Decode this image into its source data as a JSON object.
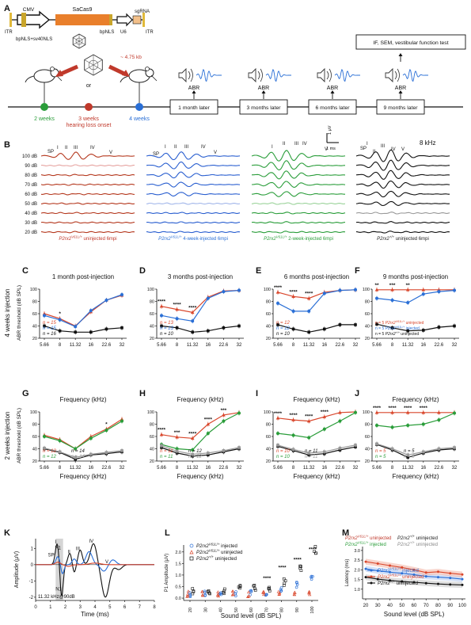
{
  "panel_letters": [
    "A",
    "B",
    "C",
    "D",
    "E",
    "F",
    "G",
    "H",
    "I",
    "J",
    "K",
    "L",
    "M"
  ],
  "construct": {
    "itr_left": "ITR",
    "itr_right": "ITR",
    "cmv": "CMV",
    "sacas9": "SaCas9",
    "u6": "U6",
    "sgrna": "sgRNA",
    "nls1": "bpNLS+sv40NLS",
    "nls2": "bpNLS",
    "size": "~ 4.75 kb"
  },
  "timeline": {
    "or": "or",
    "t2": "2 weeks",
    "t3a": "3 weeks",
    "t3b": "hearing loss onset",
    "t4": "4 weeks",
    "boxes": [
      "1 month later",
      "3 months later",
      "6 months later",
      "9 months later"
    ],
    "abr": "ABR",
    "final_test": "IF, SEM, vestibular function test",
    "colors": {
      "t2": "#2a9d3a",
      "t3": "#c0392b",
      "t4": "#2a6fd6"
    }
  },
  "panel_b": {
    "db_labels": [
      "100 dB",
      "90 dB",
      "80 dB",
      "70 dB",
      "60 dB",
      "50 dB",
      "40 dB",
      "30 dB",
      "20 dB"
    ],
    "peak_labels": [
      "SP",
      "I",
      "II",
      "III",
      "IV",
      "V"
    ],
    "freq": "8 kHz",
    "scale_v": "1 μV",
    "scale_t": "1 ms",
    "captions": [
      {
        "gene": "P2rx2",
        "sup": "V61L/+",
        "rest": " uninjected 6mpi",
        "color": "#c0392b"
      },
      {
        "gene": "P2rx2",
        "sup": "V61L/+",
        "rest": " 4-week-injected 6mpi",
        "color": "#2a6fd6"
      },
      {
        "gene": "P2rx2",
        "sup": "V61L/+",
        "rest": " 2-week-injected 6mpi",
        "color": "#2a9d3a"
      },
      {
        "gene": "P2rx2",
        "sup": "+/+",
        "rest": " uninjected 6mpi",
        "color": "#222222"
      }
    ]
  },
  "rowlabels": {
    "row1": "4 weeks injection",
    "row2": "2 weeks injection",
    "ylabel": "ABR threshold (dB SPL)"
  },
  "abr_charts": {
    "xlabel": "Frequency (kHz)",
    "x_ticks": [
      "5.66",
      "8",
      "11.32",
      "16",
      "22.6",
      "32"
    ],
    "y_ticks": [
      "20",
      "40",
      "60",
      "80",
      "100"
    ],
    "colors": {
      "mut": "#d9462b",
      "treat4": "#2a6fd6",
      "treat2": "#2a9d3a",
      "wt": "#111111",
      "wt2": "#999999"
    }
  },
  "chart_data": [
    {
      "panel": "C",
      "type": "line",
      "title": "1 month post-injection",
      "x": [
        5.66,
        8,
        11.32,
        16,
        22.6,
        32
      ],
      "ylim": [
        0,
        100
      ],
      "series": [
        {
          "values": [
            60,
            52,
            40,
            63,
            82,
            90
          ]
        },
        {
          "values": [
            57,
            50,
            39,
            65,
            82,
            91
          ]
        },
        {
          "values": [
            40,
            32,
            30,
            30,
            35,
            37
          ]
        }
      ],
      "stars": [
        {
          "x": 8,
          "text": "*"
        }
      ],
      "n": [
        {
          "text": "n = 15"
        },
        {
          "text": "n = 15"
        },
        {
          "text": "n = 16"
        }
      ]
    },
    {
      "panel": "D",
      "type": "line",
      "title": "3 months post-injection",
      "x": [
        5.66,
        8,
        11.32,
        16,
        22.6,
        32
      ],
      "ylim": [
        0,
        100
      ],
      "series": [
        {
          "values": [
            72,
            67,
            62,
            87,
            97,
            98
          ]
        },
        {
          "values": [
            57,
            52,
            48,
            85,
            96,
            98
          ]
        },
        {
          "values": [
            40,
            37,
            30,
            32,
            37,
            40
          ]
        }
      ],
      "stars": [
        {
          "x": 5.66,
          "text": "****"
        },
        {
          "x": 8,
          "text": "****"
        },
        {
          "x": 11.32,
          "text": "****"
        }
      ],
      "n": [
        {
          "text": "n = 13"
        },
        {
          "text": "n = 13"
        },
        {
          "text": "n = 10"
        }
      ]
    },
    {
      "panel": "E",
      "type": "line",
      "title": "6 months post-injection",
      "x": [
        5.66,
        8,
        11.32,
        16,
        22.6,
        32
      ],
      "ylim": [
        0,
        100
      ],
      "series": [
        {
          "values": [
            95,
            88,
            85,
            95,
            98,
            99
          ]
        },
        {
          "values": [
            77,
            64,
            64,
            93,
            98,
            99
          ]
        },
        {
          "values": [
            42,
            35,
            30,
            35,
            42,
            42
          ]
        }
      ],
      "stars": [
        {
          "x": 5.66,
          "text": "****"
        },
        {
          "x": 8,
          "text": "****"
        },
        {
          "x": 11.32,
          "text": "****"
        }
      ],
      "n": [
        {
          "text": "n = 12"
        },
        {
          "text": "n = 12"
        },
        {
          "text": "n = 10"
        }
      ]
    },
    {
      "panel": "F",
      "type": "line",
      "title": "9 months post-injection",
      "x": [
        5.66,
        8,
        11.32,
        16,
        22.6,
        32
      ],
      "ylim": [
        0,
        100
      ],
      "series": [
        {
          "values": [
            99,
            99,
            99,
            99,
            99,
            99
          ]
        },
        {
          "values": [
            85,
            82,
            78,
            92,
            96,
            98
          ]
        },
        {
          "values": [
            43,
            37,
            32,
            33,
            38,
            40
          ]
        }
      ],
      "stars": [
        {
          "x": 5.66,
          "text": "**"
        },
        {
          "x": 8,
          "text": "***"
        },
        {
          "x": 11.32,
          "text": "**"
        }
      ],
      "legend": [
        {
          "pre": "n = 5 ",
          "gene": "P2rx2",
          "sup": "V61L/+",
          "post": " uninjected"
        },
        {
          "pre": "n = 5 ",
          "gene": "P2rx2",
          "sup": "V61L/+",
          "post": " injected"
        },
        {
          "pre": "n = 5 ",
          "gene": "P2rx2",
          "sup": "+/+",
          "post": " uninjected"
        }
      ]
    },
    {
      "panel": "G",
      "type": "line",
      "title": "Frequency (kHz)",
      "x": [
        5.66,
        8,
        11.32,
        16,
        22.6,
        32
      ],
      "ylim": [
        0,
        100
      ],
      "series": [
        {
          "values": [
            62,
            55,
            40,
            60,
            72,
            88
          ]
        },
        {
          "values": [
            60,
            53,
            40,
            57,
            70,
            85
          ]
        },
        {
          "values": [
            40,
            34,
            23,
            30,
            32,
            35
          ]
        },
        {
          "values": [
            41,
            35,
            26,
            31,
            34,
            37
          ]
        }
      ],
      "stars": [
        {
          "x": 22.6,
          "text": "*"
        }
      ],
      "n": [
        {
          "text": "n = 12"
        },
        {
          "text": "n = 12"
        },
        {
          "text": "n = 14"
        },
        {
          "text": "n = 14"
        }
      ]
    },
    {
      "panel": "H",
      "type": "line",
      "title": "Frequency (kHz)",
      "x": [
        5.66,
        8,
        11.32,
        16,
        22.6,
        32
      ],
      "ylim": [
        0,
        100
      ],
      "series": [
        {
          "values": [
            63,
            59,
            57,
            80,
            95,
            99
          ]
        },
        {
          "values": [
            47,
            40,
            38,
            65,
            85,
            98
          ]
        },
        {
          "values": [
            42,
            33,
            28,
            30,
            35,
            40
          ]
        },
        {
          "values": [
            45,
            36,
            31,
            33,
            37,
            42
          ]
        }
      ],
      "stars": [
        {
          "x": 5.66,
          "text": "****"
        },
        {
          "x": 8,
          "text": "***"
        },
        {
          "x": 11.32,
          "text": "****"
        },
        {
          "x": 16,
          "text": "****"
        },
        {
          "x": 22.6,
          "text": "***"
        }
      ],
      "n": [
        {
          "text": "n = 11"
        },
        {
          "text": "n = 11"
        },
        {
          "text": "n = 12"
        },
        {
          "text": "n = 12"
        }
      ]
    },
    {
      "panel": "I",
      "type": "line",
      "title": "Frequency (kHz)",
      "x": [
        5.66,
        8,
        11.32,
        16,
        22.6,
        32
      ],
      "ylim": [
        0,
        100
      ],
      "series": [
        {
          "values": [
            90,
            87,
            85,
            92,
            99,
            100
          ]
        },
        {
          "values": [
            65,
            62,
            58,
            72,
            85,
            99
          ]
        },
        {
          "values": [
            44,
            37,
            30,
            32,
            38,
            43
          ]
        },
        {
          "values": [
            46,
            39,
            33,
            35,
            41,
            46
          ]
        }
      ],
      "stars": [
        {
          "x": 5.66,
          "text": "****"
        },
        {
          "x": 8,
          "text": "****"
        },
        {
          "x": 11.32,
          "text": "****"
        },
        {
          "x": 16,
          "text": "****"
        }
      ],
      "n": [
        {
          "text": "n = 10"
        },
        {
          "text": "n = 10"
        },
        {
          "text": "n = 11"
        },
        {
          "text": "n = 11"
        }
      ]
    },
    {
      "panel": "J",
      "type": "line",
      "title": "Frequency (kHz)",
      "x": [
        5.66,
        8,
        11.32,
        16,
        22.6,
        32
      ],
      "ylim": [
        0,
        100
      ],
      "series": [
        {
          "values": [
            99,
            99,
            99,
            99,
            99,
            99
          ]
        },
        {
          "values": [
            78,
            75,
            78,
            80,
            87,
            98
          ]
        },
        {
          "values": [
            47,
            38,
            26,
            33,
            38,
            40
          ]
        },
        {
          "values": [
            48,
            40,
            30,
            35,
            40,
            42
          ]
        }
      ],
      "stars": [
        {
          "x": 5.66,
          "text": "****"
        },
        {
          "x": 8,
          "text": "****"
        },
        {
          "x": 11.32,
          "text": "****"
        },
        {
          "x": 16,
          "text": "****"
        }
      ],
      "n": [
        {
          "text": "n = 5"
        },
        {
          "text": "n = 5"
        },
        {
          "text": "n = 5"
        },
        {
          "text": "n = 5"
        }
      ]
    },
    {
      "panel": "K",
      "type": "line",
      "xlabel": "Time (ms)",
      "ylabel": "Amplitude (μV)",
      "xlim": [
        0,
        8
      ],
      "ylim": [
        -2.2,
        1.6
      ],
      "x_ticks": [
        "0",
        "1",
        "2",
        "3",
        "4",
        "5",
        "6",
        "7",
        "8"
      ],
      "y_ticks": [
        "-2",
        "-1",
        "0",
        "1"
      ],
      "annotation": "11.32 kHz@90dB",
      "peaks": [
        "SP",
        "I",
        "P1",
        "N1",
        "II",
        "III",
        "IV",
        "V"
      ]
    },
    {
      "panel": "L",
      "type": "scatter",
      "xlabel": "Sound level (dB SPL)",
      "ylabel": "P1 Amplitude (μV)",
      "x_ticks": [
        "20",
        "30",
        "40",
        "50",
        "60",
        "70",
        "80",
        "90",
        "100"
      ],
      "y_ticks": [
        "0.0",
        "0.5",
        "1.0",
        "1.5",
        "2.0"
      ],
      "ylim": [
        -0.1,
        2.3
      ],
      "legend": [
        {
          "sym": "o",
          "gene": "P2rx2",
          "sup": "V61L/+",
          "post": " injected"
        },
        {
          "sym": "^",
          "gene": "P2rx2",
          "sup": "V61L/+",
          "post": " uninjected"
        },
        {
          "sym": "s",
          "gene": "P2rx2",
          "sup": "+/+",
          "post": " uninjected"
        }
      ],
      "stars": [
        "****",
        "****",
        "****",
        "****"
      ]
    },
    {
      "panel": "M",
      "type": "line",
      "xlabel": "Sound level (dB SPL)",
      "ylabel": "Latency (ms)",
      "x": [
        20,
        30,
        40,
        50,
        60,
        70,
        80,
        90,
        100
      ],
      "ylim": [
        0.5,
        3.2
      ],
      "x_ticks": [
        "20",
        "30",
        "40",
        "50",
        "60",
        "70",
        "80",
        "90",
        "100"
      ],
      "y_ticks": [
        "1.0",
        "1.5",
        "2.0",
        "2.5",
        "3.0"
      ],
      "series": [
        {
          "values": [
            2.05,
            1.95,
            1.88,
            1.82,
            1.75,
            1.66,
            1.62,
            1.58,
            1.52
          ]
        },
        {
          "values": [
            2.42,
            2.32,
            2.22,
            2.12,
            2.0,
            1.86,
            1.9,
            1.82,
            1.76
          ]
        },
        {
          "values": [
            1.62,
            1.52,
            1.45,
            1.4,
            1.36,
            1.31,
            1.27,
            1.24,
            1.22
          ]
        }
      ],
      "legend_top": [
        {
          "gene": "P2rx2",
          "sup": "V61L/+",
          "post": " uninjected",
          "color": "#c0392b"
        },
        {
          "gene": "P2rx2",
          "sup": "+/+",
          "post": " uninjected",
          "color": "#222222"
        },
        {
          "gene": "P2rx2",
          "sup": "V61L/+",
          "post": " injected",
          "color": "#2a9d3a"
        },
        {
          "gene": "P2rx2",
          "sup": "+/+",
          "post": " uninjected",
          "color": "#888888"
        }
      ],
      "legend": [
        {
          "gene": "P2rx2",
          "sup": "V61L/+",
          "post": " injected",
          "color": "#2a6fd6"
        },
        {
          "gene": "P2rx2",
          "sup": "V61L/+",
          "post": " uninjected",
          "color": "#d9462b"
        },
        {
          "gene": "P2rx2",
          "sup": "+/+",
          "post": " uninjected",
          "color": "#111111"
        }
      ]
    }
  ]
}
